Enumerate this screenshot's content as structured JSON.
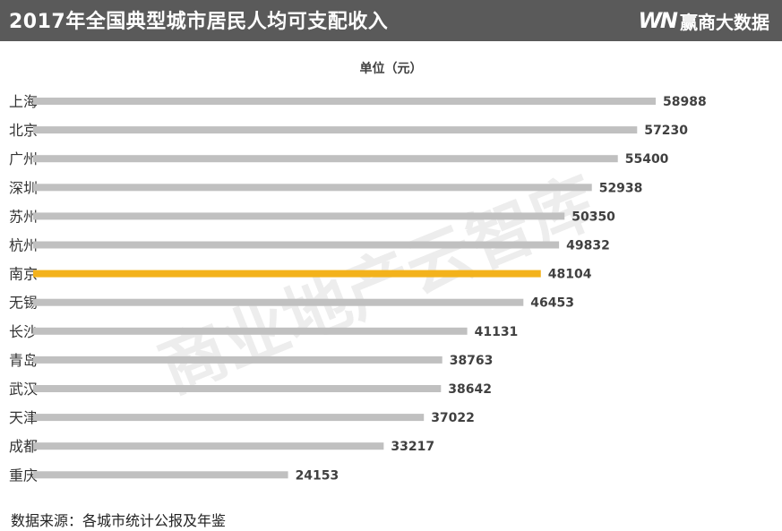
{
  "header": {
    "title": "2017年全国典型城市居民人均可支配收入",
    "brand_logo": "WN",
    "brand_name": "赢商大数据"
  },
  "footer": {
    "source": "数据来源：各城市统计公报及年鉴"
  },
  "watermark": {
    "text": "商业地产云智库"
  },
  "colors": {
    "bar": "#c0c0c0",
    "highlight": "#f3b21b",
    "header": "#5a5a5a",
    "label": "#404040"
  },
  "chart_data": {
    "type": "bar",
    "orientation": "horizontal",
    "title": "2017年全国典型城市居民人均可支配收入",
    "unit_label": "单位（元）",
    "categories": [
      "上海",
      "北京",
      "广州",
      "深圳",
      "苏州",
      "杭州",
      "南京",
      "无锡",
      "长沙",
      "青岛",
      "武汉",
      "天津",
      "成都",
      "重庆"
    ],
    "values": [
      58988,
      57230,
      55400,
      52938,
      50350,
      49832,
      48104,
      46453,
      41131,
      38763,
      38642,
      37022,
      33217,
      24153
    ],
    "highlight": "南京",
    "xlim": [
      0,
      58988
    ],
    "grid": false,
    "data_labels": true
  }
}
